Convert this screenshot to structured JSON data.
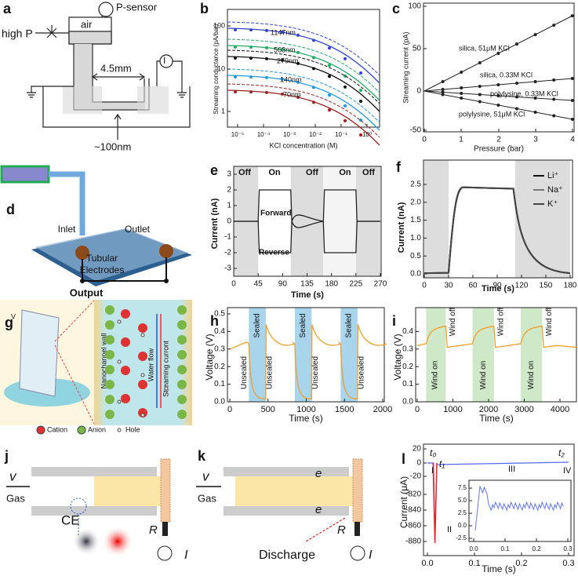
{
  "a": {
    "label": "a",
    "texts": [
      "high P",
      "air",
      "P-sensor",
      "4.5mm",
      "I",
      "~100nm"
    ]
  },
  "b": {
    "label": "b",
    "ylabel": "Streaming conductance (pA/bar)",
    "xlabel": "KCl concentration (M)",
    "yticks": [
      "1",
      "10",
      "100"
    ],
    "xticks": [
      "10⁻⁵",
      "10⁻⁴",
      "10⁻³",
      "10⁻²",
      "10⁻¹",
      "10⁰"
    ],
    "curves": [
      "1147nm",
      "563nm",
      "279nm",
      "140nm",
      "70nm"
    ]
  },
  "c": {
    "label": "c",
    "ylabel": "Streaming current (pA)",
    "xlabel": "Pressure (bar)",
    "yticks": [
      "100",
      "50",
      "0",
      "-50"
    ],
    "xticks": [
      "0",
      "1",
      "2",
      "3",
      "4"
    ],
    "curves": [
      "silica, 51μM KCl",
      "silica, 0.33M KCl",
      "polylysine, 0.33M KCl",
      "polylysine, 51μM KCl"
    ]
  },
  "d": {
    "label": "d",
    "texts": [
      "Inlet",
      "Outlet",
      "Tubular",
      "Electrodes",
      "Output"
    ]
  },
  "e": {
    "label": "e",
    "ylabel": "Current (nA)",
    "xlabel": "Time  (s)",
    "yticks": [
      "3",
      "2",
      "1",
      "0",
      "-1",
      "-2",
      "-3"
    ],
    "xticks": [
      "0",
      "45",
      "90",
      "135",
      "180",
      "225",
      "270"
    ],
    "states": [
      "Off",
      "On",
      "Off",
      "On",
      "Off"
    ],
    "texts": [
      "Forward",
      "Reverse"
    ]
  },
  "f": {
    "label": "f",
    "ylabel": "Current (nA)",
    "xlabel": "Time (s)",
    "yticks": [
      "2.5",
      "2.0",
      "1.5",
      "1.0",
      "0.5",
      "0.0"
    ],
    "xticks": [
      "0",
      "30",
      "60",
      "90",
      "120",
      "150",
      "180"
    ],
    "legend": [
      "Li⁺",
      "Na⁺",
      "K⁺"
    ]
  },
  "g": {
    "label": "g",
    "texts": [
      "V",
      "Nanochannel wall",
      "Water flow",
      "Streaming current"
    ],
    "legend": [
      "Cation",
      "Anion",
      "Hole"
    ]
  },
  "h": {
    "label": "h",
    "ylabel": "Voltage (V)",
    "xlabel": "Time (s)",
    "yticks": [
      "0.5",
      "0.4",
      "0.3",
      "0.2",
      "0.1",
      "0.0"
    ],
    "xticks": [
      "0",
      "500",
      "1000",
      "1500",
      "2000"
    ],
    "sealed": [
      "Sealed",
      "Sealed",
      "Sealed"
    ],
    "unsealed": [
      "Unsealed",
      "Unsealed",
      "Unsealed",
      "Unsealed"
    ]
  },
  "i": {
    "label": "i",
    "ylabel": "Voltage (V)",
    "xlabel": "Time (s)",
    "yticks": [
      "0.4",
      "0.3",
      "0.2",
      "0.1",
      "0.0"
    ],
    "xticks": [
      "0",
      "1000",
      "2000",
      "3000",
      "4000"
    ],
    "on": [
      "Wind on",
      "Wind on",
      "Wind on"
    ],
    "off": [
      "Wind off",
      "Wind off",
      "Wind off"
    ]
  },
  "j": {
    "label": "j",
    "texts": [
      "v",
      "Gas",
      "CE",
      "R",
      "I"
    ]
  },
  "k": {
    "label": "k",
    "texts": [
      "v",
      "Gas",
      "e",
      "e",
      "Discharge",
      "R",
      "I"
    ]
  },
  "l": {
    "label": "l",
    "ylabel": "Current (μA)",
    "xlabel": "Time (s)",
    "yticks": [
      "20",
      "0",
      "-20",
      "-820",
      "-840",
      "-860",
      "-880"
    ],
    "xticks": [
      "0.0",
      "0.1",
      "0.2",
      "0.3"
    ],
    "markers": [
      "t₀",
      "t₁",
      "t₂"
    ],
    "phases": [
      "I",
      "II",
      "III",
      "IV"
    ],
    "inset_yticks": [
      "7.5",
      "5.0",
      "2.5",
      "0.0",
      "-2.5"
    ],
    "inset_xticks": [
      "0.0",
      "0.1",
      "0.2",
      "0.3"
    ]
  }
}
